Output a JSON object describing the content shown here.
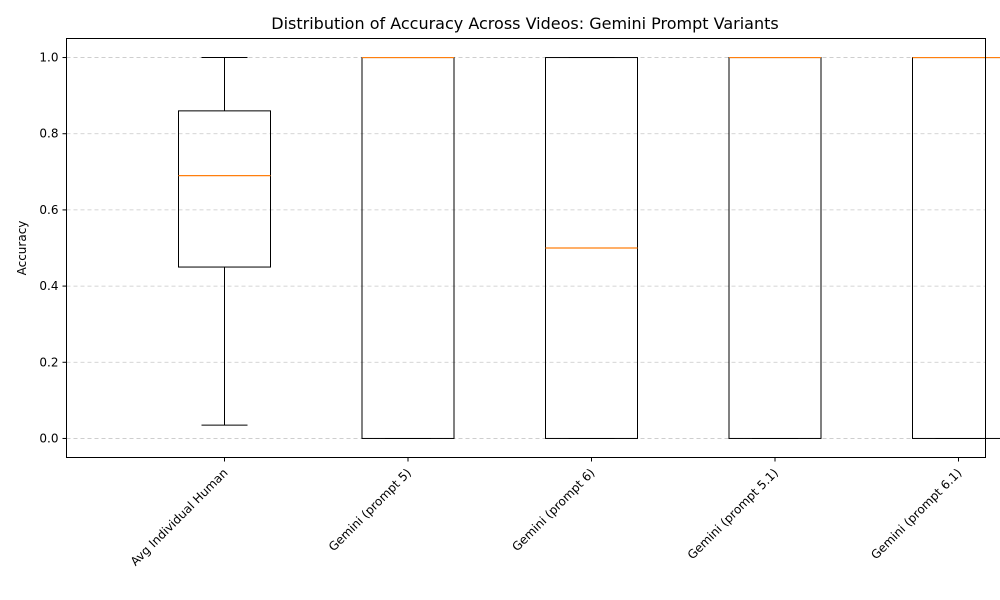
{
  "chart_data": {
    "type": "box",
    "title": "Distribution of Accuracy Across Videos: Gemini Prompt Variants",
    "xlabel": "",
    "ylabel": "Accuracy",
    "ylim": [
      -0.05,
      1.05
    ],
    "yticks": [
      0.0,
      0.2,
      0.4,
      0.6,
      0.8,
      1.0
    ],
    "ytick_labels": [
      "0.0",
      "0.2",
      "0.4",
      "0.6",
      "0.8",
      "1.0"
    ],
    "grid": "y-dashed",
    "categories": [
      "Avg Individual Human",
      "Gemini (prompt 5)",
      "Gemini (prompt 6)",
      "Gemini (prompt 5.1)",
      "Gemini (prompt 6.1)"
    ],
    "boxes": [
      {
        "whislo": 0.035,
        "q1": 0.45,
        "med": 0.69,
        "q3": 0.86,
        "whishi": 1.0
      },
      {
        "whislo": 0.0,
        "q1": 0.0,
        "med": 1.0,
        "q3": 1.0,
        "whishi": 1.0
      },
      {
        "whislo": 0.0,
        "q1": 0.0,
        "med": 0.5,
        "q3": 1.0,
        "whishi": 1.0
      },
      {
        "whislo": 0.0,
        "q1": 0.0,
        "med": 1.0,
        "q3": 1.0,
        "whishi": 1.0
      },
      {
        "whislo": 0.0,
        "q1": 0.0,
        "med": 1.0,
        "q3": 1.0,
        "whishi": 1.0
      }
    ],
    "colors": {
      "box": "#000000",
      "median": "#ff7f0e",
      "grid": "#b0b0b0"
    }
  }
}
